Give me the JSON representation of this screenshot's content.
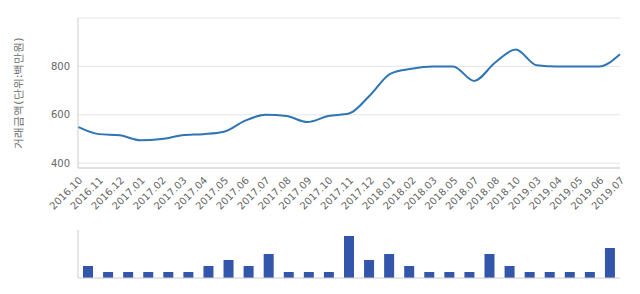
{
  "chart_data": [
    {
      "type": "line",
      "ylabel": "거래금액(단위:백만원)",
      "categories": [
        "2016.10",
        "2016.11",
        "2016.12",
        "2017.01",
        "2017.02",
        "2017.03",
        "2017.04",
        "2017.05",
        "2017.06",
        "2017.07",
        "2017.08",
        "2017.09",
        "2017.10",
        "2017.11",
        "2017.12",
        "2018.01",
        "2018.02",
        "2018.03",
        "2018.05",
        "2018.07",
        "2018.08",
        "2018.10",
        "2019.03",
        "2019.04",
        "2019.05",
        "2019.06",
        "2019.07"
      ],
      "values": [
        550,
        520,
        515,
        495,
        500,
        515,
        520,
        530,
        575,
        600,
        595,
        570,
        595,
        605,
        680,
        770,
        790,
        800,
        800,
        740,
        815,
        870,
        805,
        800,
        800,
        800,
        850
      ],
      "color": "#2e75b6",
      "ylim": [
        380,
        1000
      ],
      "yticks": [
        400,
        600,
        800
      ],
      "grid": true,
      "marker": "none"
    },
    {
      "type": "bar",
      "categories": [
        "2016.10",
        "2016.11",
        "2016.12",
        "2017.01",
        "2017.02",
        "2017.03",
        "2017.04",
        "2017.05",
        "2017.06",
        "2017.07",
        "2017.08",
        "2017.09",
        "2017.10",
        "2017.11",
        "2017.12",
        "2018.01",
        "2018.02",
        "2018.03",
        "2018.05",
        "2018.07",
        "2018.08",
        "2018.10",
        "2019.03",
        "2019.04",
        "2019.05",
        "2019.06",
        "2019.07"
      ],
      "values": [
        2,
        1,
        1,
        1,
        1,
        1,
        2,
        3,
        2,
        4,
        1,
        1,
        1,
        7,
        3,
        4,
        2,
        1,
        1,
        1,
        4,
        2,
        1,
        1,
        1,
        1,
        5
      ],
      "color": "#3355aa",
      "ylim": [
        0,
        8
      ],
      "tick_labels": false
    }
  ]
}
